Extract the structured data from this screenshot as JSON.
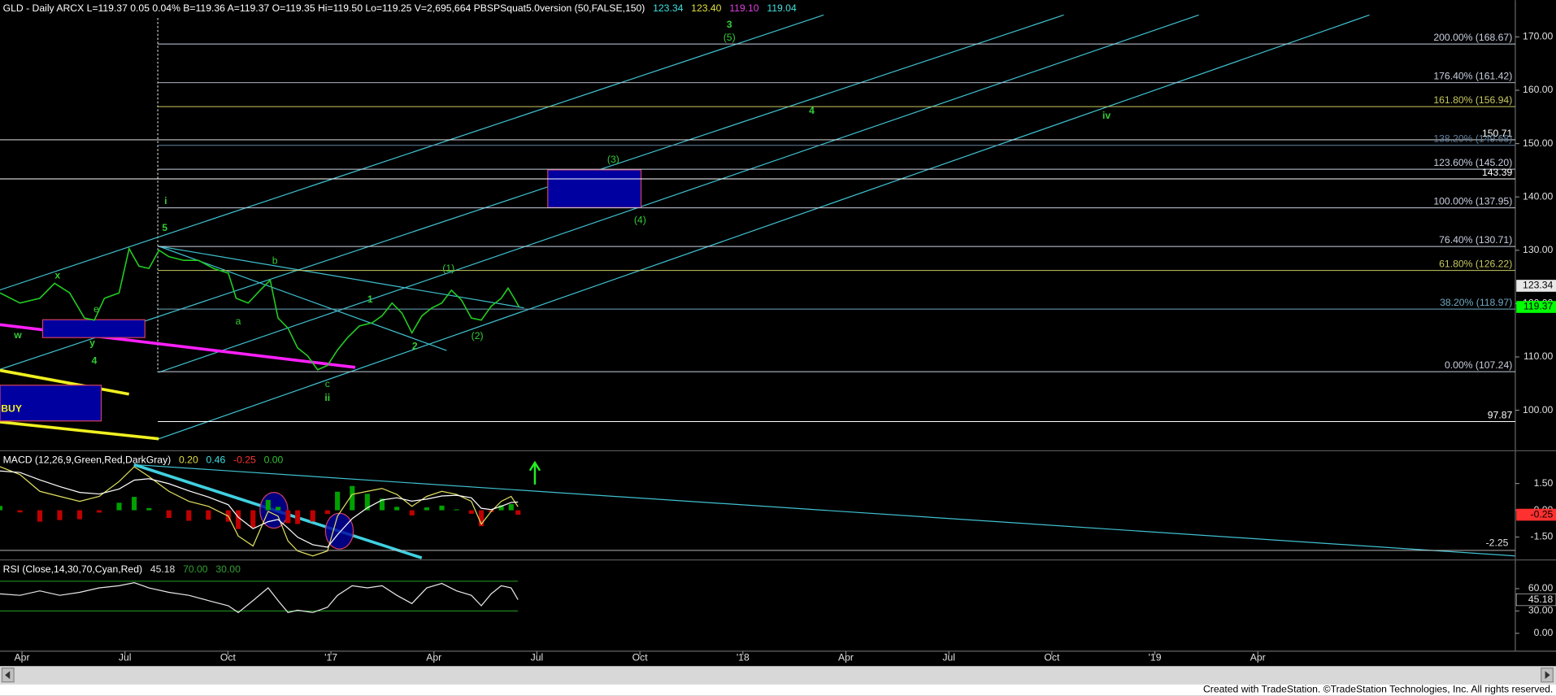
{
  "chart_data": [
    {
      "type": "line",
      "title": "GLD - Daily ARCX L=119.37 0.05 0.04% B=119.36 A=119.37 O=119.35 Hi=119.50 Lo=119.25 V=2,695,664 PBSPSquat5.0version (50,FALSE,150)",
      "title_values": [
        "123.34",
        "123.40",
        "119.10",
        "119.04"
      ],
      "title_value_colors": [
        "#40e0e0",
        "#e0e040",
        "#e040e0",
        "#40e0e0"
      ],
      "color": "#22cc22",
      "x": [
        -0.64,
        -0.06,
        0.52,
        0.95,
        1.39,
        1.82,
        2.11,
        2.4,
        2.83,
        3.12,
        3.41,
        3.7,
        3.99,
        4.28,
        4.71,
        5.14,
        5.58,
        6.01,
        6.24,
        6.59,
        6.94,
        7.23,
        7.46,
        7.75,
        8.03,
        8.32,
        8.61,
        8.9,
        9.19,
        9.48,
        9.83,
        10.2,
        10.49,
        10.78,
        11.07,
        11.36,
        11.65,
        11.94,
        12.23,
        12.51,
        12.8,
        13.09,
        13.38,
        13.67,
        13.96,
        14.16,
        14.34,
        14.48
      ],
      "values": [
        122.0,
        120.1,
        121.0,
        123.8,
        122.0,
        117.3,
        116.9,
        121.0,
        122.0,
        130.3,
        127.0,
        126.6,
        130.0,
        128.8,
        128.1,
        128.1,
        126.6,
        125.7,
        121.0,
        120.1,
        122.5,
        124.4,
        117.3,
        115.4,
        111.7,
        110.2,
        107.6,
        108.4,
        111.3,
        113.6,
        115.8,
        116.4,
        117.7,
        120.1,
        118.2,
        114.5,
        117.7,
        119.2,
        120.1,
        122.5,
        120.7,
        117.3,
        116.9,
        119.5,
        121.0,
        122.9,
        121.0,
        119.37
      ],
      "xlim": [
        -0.64,
        43.5
      ],
      "xticks": [
        {
          "value": 0,
          "label": "Apr"
        },
        {
          "value": 3,
          "label": "Jul"
        },
        {
          "value": 6,
          "label": "Oct"
        },
        {
          "value": 9,
          "label": "'17"
        },
        {
          "value": 12,
          "label": "Apr"
        },
        {
          "value": 15,
          "label": "Jul"
        },
        {
          "value": 18,
          "label": "Oct"
        },
        {
          "value": 21,
          "label": "'18"
        },
        {
          "value": 24,
          "label": "Apr"
        },
        {
          "value": 27,
          "label": "Jul"
        },
        {
          "value": 30,
          "label": "Oct"
        },
        {
          "value": 33,
          "label": "'19"
        },
        {
          "value": 36,
          "label": "Apr"
        }
      ],
      "ylim": [
        92.6,
        176.9
      ],
      "yticks": [
        {
          "value": 100,
          "label": "100.00"
        },
        {
          "value": 110,
          "label": "110.00"
        },
        {
          "value": 120,
          "label": "120.00"
        },
        {
          "value": 130,
          "label": "130.00"
        },
        {
          "value": 140,
          "label": "140.00"
        },
        {
          "value": 150,
          "label": "150.00"
        },
        {
          "value": 160,
          "label": "160.00"
        },
        {
          "value": 170,
          "label": "170.00"
        }
      ],
      "levels": [
        {
          "value": 168.67,
          "label": "200.00% (168.67)",
          "color": "#c8d0e0"
        },
        {
          "value": 161.42,
          "label": "176.40% (161.42)",
          "color": "#c8d0e0"
        },
        {
          "value": 156.94,
          "label": "161.80% (156.94)",
          "color": "#c8c860"
        },
        {
          "value": 150.71,
          "color": "#ffffff"
        },
        {
          "value": 149.68,
          "label": "138.20% (149.68)",
          "color": "#6080a0"
        },
        {
          "value": 145.2,
          "label": "123.60% (145.20)",
          "color": "#c8d0e0"
        },
        {
          "value": 143.39,
          "color": "#ffffff"
        },
        {
          "value": 137.95,
          "label": "100.00% (137.95)",
          "color": "#c8d0e0"
        },
        {
          "value": 130.71,
          "label": "76.40% (130.71)",
          "color": "#c8d0e0"
        },
        {
          "value": 126.22,
          "label": "61.80% (126.22)",
          "color": "#c8c860"
        },
        {
          "value": 118.97,
          "label": "38.20% (118.97)",
          "color": "#70a8c0"
        },
        {
          "value": 107.24,
          "label": "0.00% (107.24)",
          "color": "#c8d0e0"
        },
        {
          "value": 97.87,
          "color": "#ffffff"
        }
      ],
      "markers": [
        123.34,
        119.37
      ],
      "marker_colors": [
        "#e8e8e8",
        "#00ff00"
      ],
      "annotations": [
        "3",
        "(5)",
        "4",
        "iv",
        "(3)",
        "(4)",
        "i",
        "5",
        "x",
        "w",
        "y",
        "4",
        "b",
        "a",
        "1",
        "2",
        "(1)",
        "(2)",
        "c",
        "ii",
        "e"
      ],
      "annotation_color": "#33cc33",
      "buy_label": "BUY"
    },
    {
      "type": "line",
      "title": "MACD (12,26,9,Green,Red,DarkGray)",
      "title_values": [
        "0.20",
        "0.46",
        "-0.25",
        "0.00"
      ],
      "title_value_colors": [
        "#e0e040",
        "#40e0e0",
        "#ff3030",
        "#30c030"
      ],
      "x": [
        -0.64,
        -0.06,
        0.52,
        1.1,
        1.68,
        2.25,
        2.83,
        3.27,
        3.7,
        4.28,
        4.86,
        5.43,
        6.01,
        6.3,
        6.73,
        7.17,
        7.46,
        7.75,
        8.03,
        8.47,
        8.9,
        9.19,
        9.62,
        10.06,
        10.49,
        10.92,
        11.36,
        11.79,
        12.23,
        12.66,
        13.09,
        13.38,
        13.67,
        13.96,
        14.25,
        14.45
      ],
      "series": [
        {
          "color": "#e0e060",
          "values": [
            2.44,
            2.0,
            1.06,
            0.78,
            0.5,
            0.78,
            1.61,
            2.44,
            1.89,
            1.06,
            0.5,
            0.22,
            -0.33,
            -1.44,
            -2.0,
            -0.06,
            -0.33,
            -1.72,
            -2.28,
            -2.56,
            -2.28,
            -0.33,
            0.89,
            1.06,
            1.22,
            0.89,
            0.22,
            0.78,
            1.06,
            0.89,
            0.5,
            -0.78,
            -0.06,
            0.5,
            0.78,
            0.2
          ]
        },
        {
          "color": "#ffffff",
          "values": [
            2.2,
            2.12,
            1.7,
            1.33,
            1.0,
            0.91,
            1.19,
            1.69,
            1.77,
            1.49,
            1.09,
            0.74,
            0.31,
            -0.39,
            -1.03,
            -0.64,
            -0.52,
            -1.0,
            -1.51,
            -1.93,
            -2.07,
            -1.37,
            -0.47,
            0.14,
            0.57,
            0.7,
            0.51,
            0.62,
            0.8,
            0.84,
            0.7,
            0.11,
            0.04,
            0.22,
            0.44,
            0.46
          ]
        }
      ],
      "histogram": {
        "values": [
          0.24,
          -0.12,
          -0.64,
          -0.55,
          -0.5,
          -0.13,
          0.42,
          0.75,
          0.12,
          -0.43,
          -0.59,
          -0.52,
          -0.64,
          -1.05,
          -0.97,
          0.58,
          0.19,
          -0.72,
          -0.77,
          -0.63,
          -0.21,
          1.04,
          1.36,
          0.92,
          0.65,
          0.19,
          -0.29,
          0.16,
          0.26,
          0.05,
          -0.2,
          -0.89,
          -0.1,
          0.28,
          0.34,
          -0.25
        ],
        "colors": [
          "#00a000",
          "#c00000"
        ]
      },
      "ylim": [
        -2.67,
        3.28
      ],
      "yticks": [
        {
          "value": 1.5,
          "label": "1.50"
        },
        {
          "value": 0,
          "label": "0.00"
        },
        {
          "value": -1.5,
          "label": "-1.50"
        }
      ],
      "levels": [
        -2.25
      ],
      "markers": [
        -0.25
      ],
      "marker_colors": [
        "#ff3030"
      ]
    },
    {
      "type": "line",
      "title": "RSI (Close,14,30,70,Cyan,Red)",
      "title_values": [
        "45.18",
        "70.00",
        "30.00"
      ],
      "title_value_colors": [
        "#e0e0e0",
        "#30a030",
        "#30a030"
      ],
      "color": "#e8e8e8",
      "x": [
        -0.64,
        -0.06,
        0.52,
        1.1,
        1.68,
        2.25,
        2.83,
        3.27,
        3.7,
        4.28,
        4.86,
        5.43,
        6.01,
        6.3,
        6.73,
        7.17,
        7.46,
        7.75,
        8.03,
        8.47,
        8.9,
        9.19,
        9.62,
        10.06,
        10.49,
        10.92,
        11.36,
        11.79,
        12.23,
        12.66,
        13.09,
        13.38,
        13.67,
        13.96,
        14.25,
        14.45
      ],
      "values": [
        53,
        51,
        57,
        51,
        55,
        61,
        64,
        68,
        61,
        55,
        51,
        44,
        37,
        28,
        44,
        61,
        44,
        28,
        31,
        28,
        35,
        51,
        64,
        61,
        64,
        51,
        40,
        61,
        67,
        57,
        51,
        37,
        53,
        64,
        61,
        45.18
      ],
      "ylim": [
        -22.7,
        97.3
      ],
      "yticks": [
        {
          "value": 60,
          "label": "60.00"
        },
        {
          "value": 30,
          "label": "30.00"
        },
        {
          "value": 0,
          "label": "0.00"
        }
      ],
      "bands": [
        70,
        30
      ],
      "band_color": "#1f8f1f",
      "markers": [
        45.18
      ],
      "marker_colors": [
        "#e8e8e8"
      ]
    }
  ],
  "footer": "Created with TradeStation. ©TradeStation Technologies, Inc. All rights reserved."
}
